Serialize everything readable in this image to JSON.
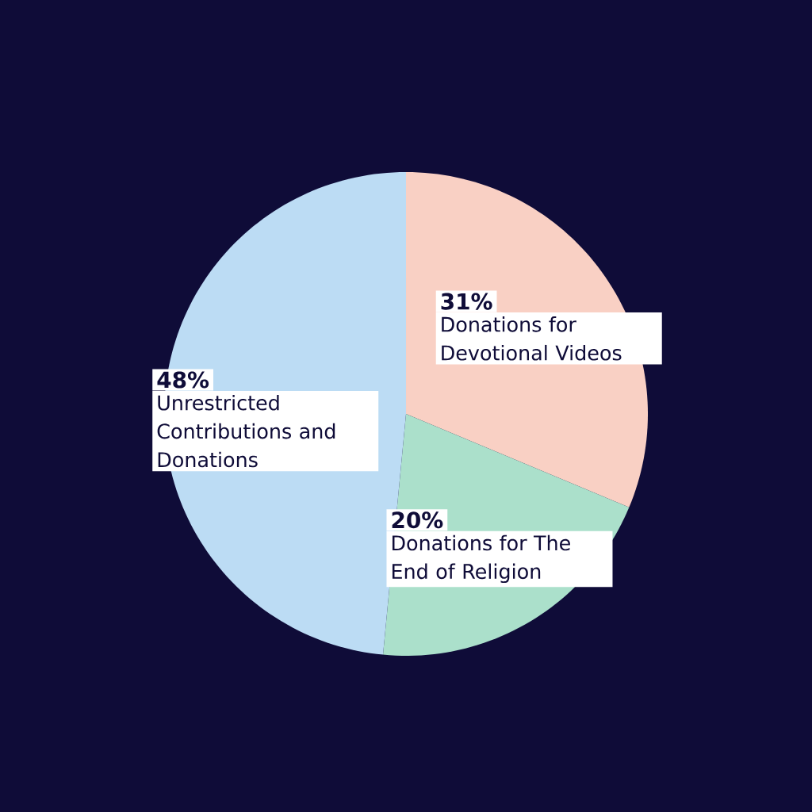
{
  "chart_data": {
    "type": "pie",
    "categories": [
      "Donations for Devotional Videos",
      "Donations for The End of Religion",
      "Unrestricted Contributions and Donations"
    ],
    "values": [
      31,
      20,
      48
    ],
    "value_labels": [
      "31%",
      "20%",
      "48%"
    ],
    "colors": [
      "#f9d0c4",
      "#abe0cb",
      "#bcdcf4"
    ]
  }
}
